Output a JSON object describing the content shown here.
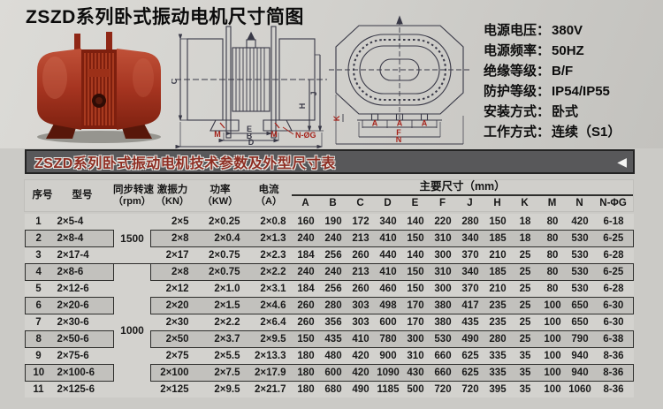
{
  "title": "ZSZD系列卧式振动电机尺寸简图",
  "specs": [
    {
      "label": "电源电压：",
      "value": "380V"
    },
    {
      "label": "电源频率：",
      "value": "50HZ"
    },
    {
      "label": "绝缘等级：",
      "value": "B/F"
    },
    {
      "label": "防护等级：",
      "value": "IP54/IP55"
    },
    {
      "label": "安装方式：",
      "value": "卧式"
    },
    {
      "label": "工作方式：",
      "value": "连续（S1）"
    }
  ],
  "table_bar": {
    "title": "ZSZD系列卧式振动电机技术参数及外型尺寸表",
    "arrow": "◀"
  },
  "diagrams": {
    "side": {
      "c": "C",
      "j": "J",
      "h": "H",
      "m": "M",
      "e": "E",
      "b": "B",
      "d": "D",
      "ng": "N-ØG"
    },
    "top": {
      "k": "K",
      "a": "A",
      "f": "F",
      "n": "N"
    }
  },
  "colors": {
    "motor_red": "#a0301c",
    "bar_bg": "#58585a",
    "bar_text_red": "#8e2d22",
    "stripe_gray": "#c2c1bd",
    "rule_line": "#2e2e2c",
    "dimension_red": "#a5241c"
  },
  "table": {
    "headers": {
      "cols": [
        {
          "label": "序号"
        },
        {
          "label": "型号"
        },
        {
          "label": "同步转速",
          "unit": "（rpm）"
        },
        {
          "label": "激振力",
          "unit": "（KN）"
        },
        {
          "label": "功率",
          "unit": "（KW）"
        },
        {
          "label": "电流",
          "unit": "（A）"
        }
      ],
      "dims_group": "主要尺寸（mm）",
      "dims": [
        "A",
        "B",
        "C",
        "D",
        "E",
        "F",
        "J",
        "H",
        "K",
        "M",
        "N",
        "N-ΦG"
      ]
    },
    "rpm_groups": [
      {
        "value": "1500",
        "start": 0,
        "rows": 3
      },
      {
        "value": "1000",
        "start": 3,
        "rows": 8
      }
    ],
    "rows": [
      {
        "no": "1",
        "model": "2×5-4",
        "force": "2×5",
        "power": "2×0.25",
        "current": "2×0.8",
        "dims": [
          "160",
          "190",
          "172",
          "340",
          "140",
          "220",
          "280",
          "150",
          "18",
          "80",
          "420",
          "6-18"
        ]
      },
      {
        "no": "2",
        "model": "2×8-4",
        "force": "2×8",
        "power": "2×0.4",
        "current": "2×1.3",
        "dims": [
          "240",
          "240",
          "213",
          "410",
          "150",
          "310",
          "340",
          "185",
          "18",
          "80",
          "530",
          "6-25"
        ]
      },
      {
        "no": "3",
        "model": "2×17-4",
        "force": "2×17",
        "power": "2×0.75",
        "current": "2×2.3",
        "dims": [
          "184",
          "256",
          "260",
          "440",
          "140",
          "300",
          "370",
          "210",
          "25",
          "80",
          "530",
          "6-28"
        ]
      },
      {
        "no": "4",
        "model": "2×8-6",
        "force": "2×8",
        "power": "2×0.75",
        "current": "2×2.2",
        "dims": [
          "240",
          "240",
          "213",
          "410",
          "150",
          "310",
          "340",
          "185",
          "25",
          "80",
          "530",
          "6-25"
        ]
      },
      {
        "no": "5",
        "model": "2×12-6",
        "force": "2×12",
        "power": "2×1.0",
        "current": "2×3.1",
        "dims": [
          "184",
          "256",
          "260",
          "460",
          "150",
          "300",
          "370",
          "210",
          "25",
          "80",
          "530",
          "6-28"
        ]
      },
      {
        "no": "6",
        "model": "2×20-6",
        "force": "2×20",
        "power": "2×1.5",
        "current": "2×4.6",
        "dims": [
          "260",
          "280",
          "303",
          "498",
          "170",
          "380",
          "417",
          "235",
          "25",
          "100",
          "650",
          "6-30"
        ]
      },
      {
        "no": "7",
        "model": "2×30-6",
        "force": "2×30",
        "power": "2×2.2",
        "current": "2×6.4",
        "dims": [
          "260",
          "356",
          "303",
          "600",
          "170",
          "380",
          "435",
          "235",
          "25",
          "100",
          "650",
          "6-30"
        ]
      },
      {
        "no": "8",
        "model": "2×50-6",
        "force": "2×50",
        "power": "2×3.7",
        "current": "2×9.5",
        "dims": [
          "150",
          "435",
          "410",
          "780",
          "300",
          "530",
          "490",
          "280",
          "25",
          "100",
          "790",
          "6-38"
        ]
      },
      {
        "no": "9",
        "model": "2×75-6",
        "force": "2×75",
        "power": "2×5.5",
        "current": "2×13.3",
        "dims": [
          "180",
          "480",
          "420",
          "900",
          "310",
          "660",
          "625",
          "335",
          "35",
          "100",
          "940",
          "8-36"
        ]
      },
      {
        "no": "10",
        "model": "2×100-6",
        "force": "2×100",
        "power": "2×7.5",
        "current": "2×17.9",
        "dims": [
          "180",
          "600",
          "420",
          "1090",
          "430",
          "660",
          "625",
          "335",
          "35",
          "100",
          "940",
          "8-36"
        ]
      },
      {
        "no": "11",
        "model": "2×125-6",
        "force": "2×125",
        "power": "2×9.5",
        "current": "2×21.7",
        "dims": [
          "180",
          "680",
          "490",
          "1185",
          "500",
          "720",
          "720",
          "395",
          "35",
          "100",
          "1060",
          "8-36"
        ]
      }
    ]
  }
}
